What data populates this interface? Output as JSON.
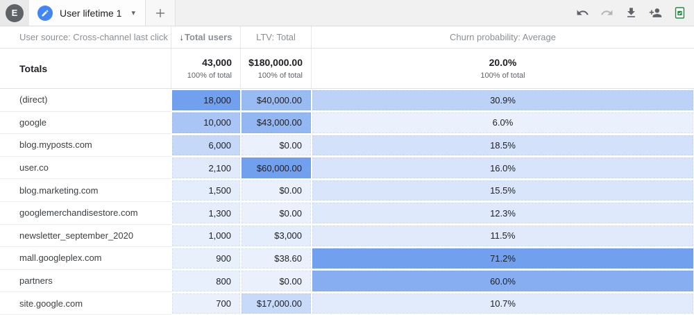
{
  "topbar": {
    "avatar_letter": "E",
    "tab_label": "User lifetime 1",
    "icons": [
      "edit-pencil",
      "chevron-down",
      "add-tab-plus",
      "undo",
      "redo",
      "download",
      "add-user",
      "export-sheet-check"
    ],
    "accent_color": "#4285f4",
    "export_icon_color": "#1e8e3e"
  },
  "table": {
    "dimension_header": "User source: Cross-channel last click",
    "columns": [
      {
        "label": "Total users",
        "sorted": true,
        "sort_direction": "descending"
      },
      {
        "label": "LTV: Total",
        "sorted": false
      },
      {
        "label": "Churn probability: Average",
        "sorted": false
      }
    ],
    "totals": {
      "label": "Totals",
      "users": "43,000",
      "ltv": "$180,000.00",
      "churn": "20.0%",
      "sub": "100% of total"
    },
    "heat_base_color": "#71a0ef",
    "rows": [
      {
        "source": "(direct)",
        "users": "18,000",
        "users_v": 18000,
        "ltv": "$40,000.00",
        "ltv_v": 40000,
        "churn": "30.9%",
        "churn_v": 30.9
      },
      {
        "source": "google",
        "users": "10,000",
        "users_v": 10000,
        "ltv": "$43,000.00",
        "ltv_v": 43000,
        "churn": "6.0%",
        "churn_v": 6.0
      },
      {
        "source": "blog.myposts.com",
        "users": "6,000",
        "users_v": 6000,
        "ltv": "$0.00",
        "ltv_v": 0,
        "churn": "18.5%",
        "churn_v": 18.5
      },
      {
        "source": "user.co",
        "users": "2,100",
        "users_v": 2100,
        "ltv": "$60,000.00",
        "ltv_v": 60000,
        "churn": "16.0%",
        "churn_v": 16.0
      },
      {
        "source": "blog.marketing.com",
        "users": "1,500",
        "users_v": 1500,
        "ltv": "$0.00",
        "ltv_v": 0,
        "churn": "15.5%",
        "churn_v": 15.5
      },
      {
        "source": "googlemerchandisestore.com",
        "users": "1,300",
        "users_v": 1300,
        "ltv": "$0.00",
        "ltv_v": 0,
        "churn": "12.3%",
        "churn_v": 12.3
      },
      {
        "source": "newsletter_september_2020",
        "users": "1,000",
        "users_v": 1000,
        "ltv": "$3,000",
        "ltv_v": 3000,
        "churn": "11.5%",
        "churn_v": 11.5
      },
      {
        "source": "mall.googleplex.com",
        "users": "900",
        "users_v": 900,
        "ltv": "$38.60",
        "ltv_v": 38.6,
        "churn": "71.2%",
        "churn_v": 71.2
      },
      {
        "source": "partners",
        "users": "800",
        "users_v": 800,
        "ltv": "$0.00",
        "ltv_v": 0,
        "churn": "60.0%",
        "churn_v": 60.0
      },
      {
        "source": "site.google.com",
        "users": "700",
        "users_v": 700,
        "ltv": "$17,000.00",
        "ltv_v": 17000,
        "churn": "10.7%",
        "churn_v": 10.7
      }
    ]
  }
}
